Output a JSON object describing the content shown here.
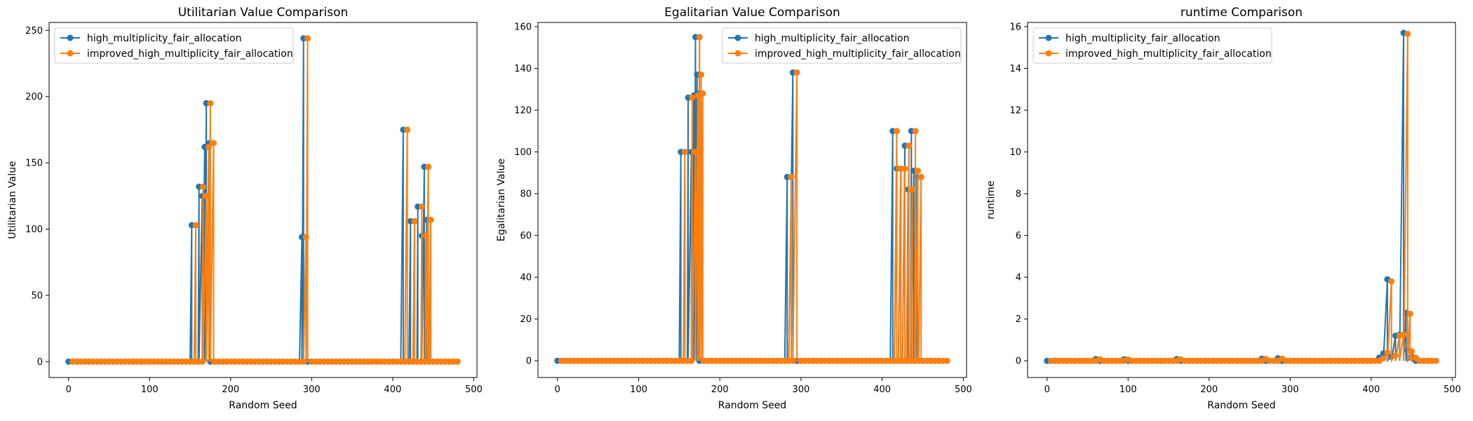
{
  "colors": {
    "series0": "#1f77b4",
    "series1": "#ff7f0e"
  },
  "chart_data": [
    {
      "type": "line",
      "title": "Utilitarian Value Comparison",
      "xlabel": "Random Seed",
      "ylabel": "Utilitarian Value",
      "xlim": [
        -24,
        504
      ],
      "ylim": [
        -12,
        256
      ],
      "xticks": [
        0,
        100,
        200,
        300,
        400,
        500
      ],
      "yticks": [
        0,
        50,
        100,
        150,
        200,
        250
      ],
      "legend": "upper-left",
      "series": [
        {
          "name": "high_multiplicity_fair_allocation",
          "spikes": [
            [
              152,
              103
            ],
            [
              161,
              132
            ],
            [
              165,
              125
            ],
            [
              168,
              162
            ],
            [
              170,
              195
            ],
            [
              174,
              165
            ],
            [
              288,
              94
            ],
            [
              290,
              244
            ],
            [
              413,
              175
            ],
            [
              422,
              106
            ],
            [
              431,
              117
            ],
            [
              436,
              95
            ],
            [
              439,
              147
            ],
            [
              442,
              107
            ]
          ]
        },
        {
          "name": "improved_high_multiplicity_fair_allocation",
          "spikes": [
            [
              157,
              103
            ],
            [
              166,
              132
            ],
            [
              170,
              125
            ],
            [
              173,
              162
            ],
            [
              175,
              195
            ],
            [
              179,
              165
            ],
            [
              293,
              94
            ],
            [
              295,
              244
            ],
            [
              418,
              175
            ],
            [
              427,
              106
            ],
            [
              436,
              117
            ],
            [
              441,
              95
            ],
            [
              444,
              147
            ],
            [
              447,
              107
            ]
          ]
        }
      ]
    },
    {
      "type": "line",
      "title": "Egalitarian Value Comparison",
      "xlabel": "Random Seed",
      "ylabel": "Egalitarian Value",
      "xlim": [
        -24,
        504
      ],
      "ylim": [
        -8,
        162
      ],
      "xticks": [
        0,
        100,
        200,
        300,
        400,
        500
      ],
      "yticks": [
        0,
        20,
        40,
        60,
        80,
        100,
        120,
        140,
        160
      ],
      "legend": "upper-right",
      "series": [
        {
          "name": "high_multiplicity_fair_allocation",
          "spikes": [
            [
              152,
              100
            ],
            [
              161,
              126
            ],
            [
              165,
              100
            ],
            [
              168,
              127
            ],
            [
              170,
              155
            ],
            [
              172,
              137
            ],
            [
              174,
              128
            ],
            [
              283,
              88
            ],
            [
              290,
              138
            ],
            [
              413,
              110
            ],
            [
              418,
              92
            ],
            [
              423,
              92
            ],
            [
              428,
              103
            ],
            [
              432,
              82
            ],
            [
              436,
              110
            ],
            [
              439,
              91
            ],
            [
              443,
              88
            ]
          ]
        },
        {
          "name": "improved_high_multiplicity_fair_allocation",
          "spikes": [
            [
              157,
              100
            ],
            [
              166,
              126
            ],
            [
              170,
              100
            ],
            [
              173,
              127
            ],
            [
              175,
              155
            ],
            [
              177,
              137
            ],
            [
              179,
              128
            ],
            [
              288,
              88
            ],
            [
              295,
              138
            ],
            [
              418,
              110
            ],
            [
              423,
              92
            ],
            [
              428,
              92
            ],
            [
              433,
              103
            ],
            [
              437,
              82
            ],
            [
              441,
              110
            ],
            [
              444,
              91
            ],
            [
              448,
              88
            ]
          ]
        }
      ]
    },
    {
      "type": "line",
      "title": "runtime Comparison",
      "xlabel": "Random Seed",
      "ylabel": "runtime",
      "xlim": [
        -24,
        504
      ],
      "ylim": [
        -0.8,
        16.2
      ],
      "xticks": [
        0,
        100,
        200,
        300,
        400,
        500
      ],
      "yticks": [
        0,
        2,
        4,
        6,
        8,
        10,
        12,
        14,
        16
      ],
      "legend": "upper-left",
      "series": [
        {
          "name": "high_multiplicity_fair_allocation",
          "spikes": [
            [
              60,
              0.08
            ],
            [
              95,
              0.07
            ],
            [
              160,
              0.08
            ],
            [
              265,
              0.1
            ],
            [
              285,
              0.12
            ],
            [
              410,
              0.15
            ],
            [
              415,
              0.35
            ],
            [
              420,
              3.9
            ],
            [
              425,
              0.2
            ],
            [
              430,
              1.2
            ],
            [
              435,
              1.25
            ],
            [
              440,
              15.7
            ],
            [
              443,
              2.3
            ],
            [
              445,
              0.5
            ],
            [
              450,
              0.2
            ]
          ]
        },
        {
          "name": "improved_high_multiplicity_fair_allocation",
          "spikes": [
            [
              65,
              0.07
            ],
            [
              100,
              0.06
            ],
            [
              165,
              0.07
            ],
            [
              270,
              0.09
            ],
            [
              290,
              0.1
            ],
            [
              415,
              0.12
            ],
            [
              420,
              0.4
            ],
            [
              425,
              3.8
            ],
            [
              430,
              0.25
            ],
            [
              435,
              1.2
            ],
            [
              440,
              1.25
            ],
            [
              445,
              15.65
            ],
            [
              448,
              2.25
            ],
            [
              450,
              0.45
            ],
            [
              455,
              0.15
            ]
          ]
        }
      ]
    }
  ]
}
